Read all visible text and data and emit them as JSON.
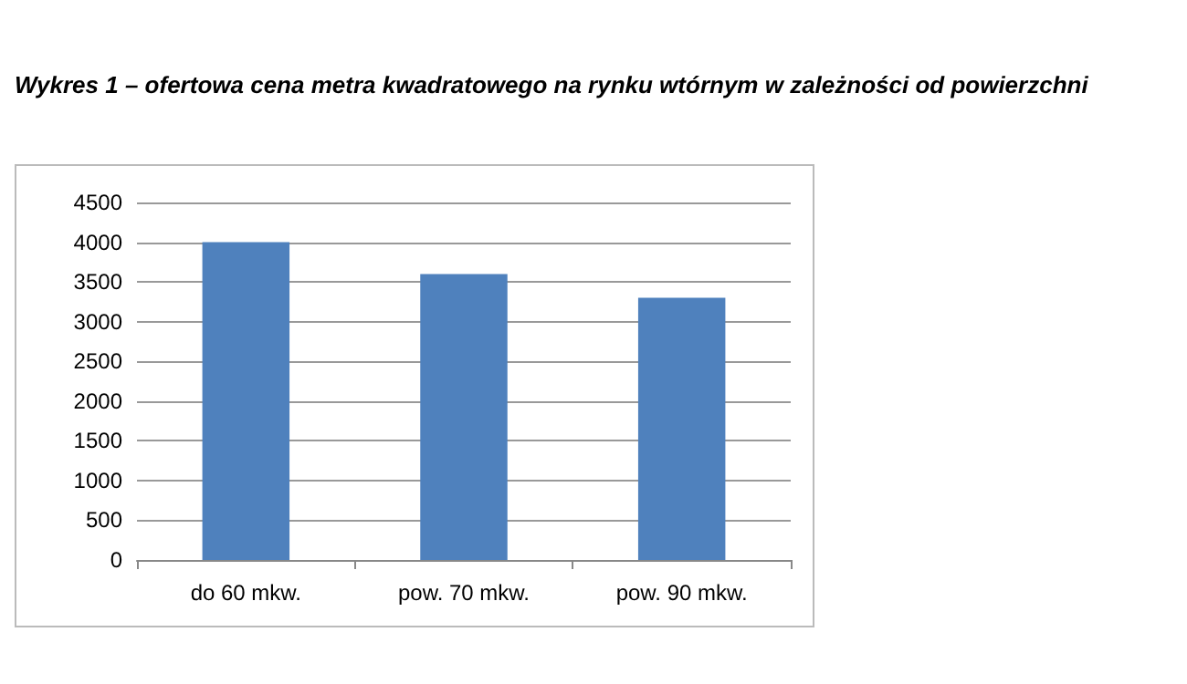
{
  "chart_data": {
    "type": "bar",
    "title": "Wykres 1 – ofertowa cena metra kwadratowego na rynku wtórnym w zależności od powierzchni",
    "categories": [
      "do 60 mkw.",
      "pow. 70 mkw.",
      "pow. 90 mkw."
    ],
    "values": [
      4000,
      3600,
      3300
    ],
    "color": "#4f81bd",
    "ylim": [
      0,
      4500
    ],
    "yticks": [
      0,
      500,
      1000,
      1500,
      2000,
      2500,
      3000,
      3500,
      4000,
      4500
    ],
    "grid": "y"
  }
}
